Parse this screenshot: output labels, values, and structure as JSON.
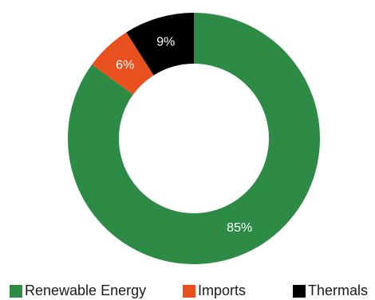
{
  "chart_data": {
    "type": "pie",
    "variant": "donut",
    "title": "",
    "slices": [
      {
        "label": "Renewable Energy",
        "value": 85,
        "display": "85%",
        "color": "#2e8b45"
      },
      {
        "label": "Imports",
        "value": 6,
        "display": "6%",
        "color": "#e8501e"
      },
      {
        "label": "Thermals",
        "value": 9,
        "display": "9%",
        "color": "#000000"
      }
    ],
    "legend": {
      "position": "bottom",
      "entries": [
        {
          "label": "Renewable Energy",
          "color": "#2e8b45"
        },
        {
          "label": "Imports",
          "color": "#e8501e"
        },
        {
          "label": "Thermals",
          "color": "#000000"
        }
      ]
    }
  }
}
